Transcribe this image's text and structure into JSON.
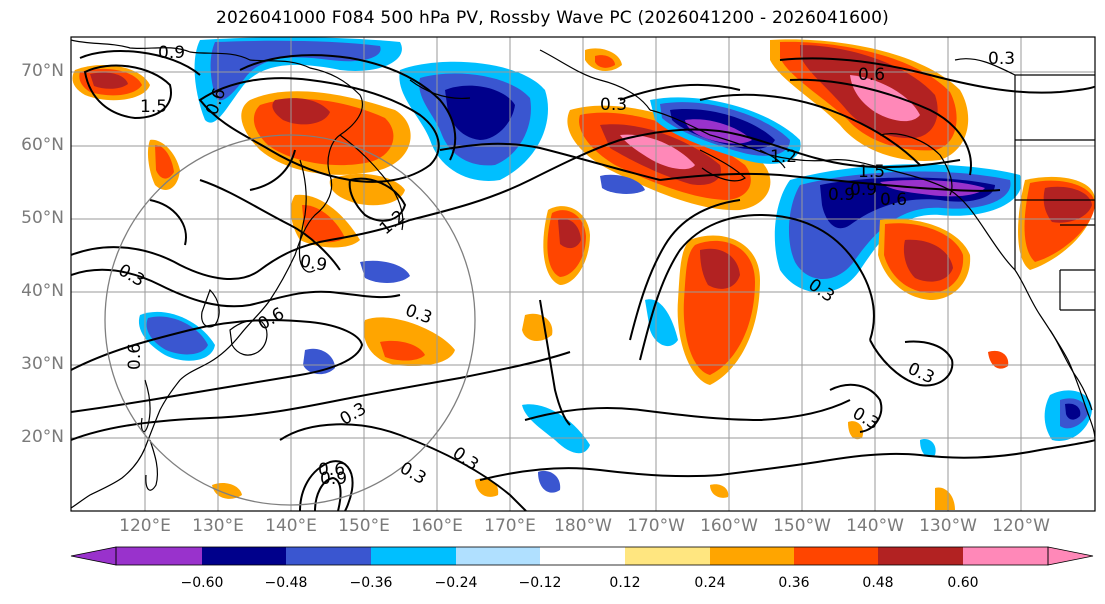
{
  "title": "2026041000 F084 500 hPa PV, Rossby Wave PC (2026041200 - 2026041600)",
  "lat_labels": [
    "70°N",
    "60°N",
    "50°N",
    "40°N",
    "30°N",
    "20°N"
  ],
  "lon_labels": [
    "120°E",
    "130°E",
    "140°E",
    "150°E",
    "160°E",
    "170°E",
    "180°W",
    "170°W",
    "160°W",
    "150°W",
    "140°W",
    "130°W",
    "120°W"
  ],
  "contour_labels": [
    "0.9",
    "1.5",
    "0.6",
    "0.3",
    "0.6",
    "0.3",
    "1.2",
    "0.9",
    "0.3",
    "0.6",
    "0.9",
    "1.5",
    "1.2",
    "0.9",
    "0.6",
    "0.3",
    "0.3",
    "0.3",
    "0.3",
    "0.3",
    "0.3",
    "0.6",
    "0.9",
    "0.3",
    "0.6"
  ],
  "colorbar": {
    "ticks": [
      "−0.60",
      "−0.48",
      "−0.36",
      "−0.24",
      "−0.12",
      "0.12",
      "0.24",
      "0.36",
      "0.48",
      "0.60"
    ],
    "colors": [
      "#9932cc",
      "#00008b",
      "#3a56d0",
      "#00bfff",
      "#b0e0ff",
      "#ffffff",
      "#ffe680",
      "#ffa500",
      "#ff4500",
      "#b22222",
      "#ff88b8"
    ]
  },
  "palette": {
    "purple": "#9932cc",
    "navy": "#00008b",
    "blue": "#3a56d0",
    "cyan": "#00bfff",
    "lightblue": "#b0e0ff",
    "yellow": "#ffe680",
    "orange": "#ffa500",
    "redorange": "#ff4500",
    "darkred": "#b22222",
    "pink": "#ff88b8"
  }
}
